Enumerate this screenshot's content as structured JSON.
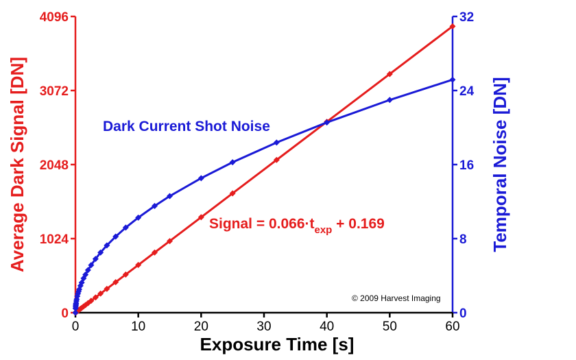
{
  "chart_data": {
    "type": "line",
    "xlabel": "Exposure Time [s]",
    "ylabel_left": "Average Dark Signal [DN]",
    "ylabel_right": "Temporal Noise [DN]",
    "xlim": [
      0,
      60
    ],
    "ylim_left": [
      0,
      4096
    ],
    "ylim_right": [
      0,
      32
    ],
    "x_ticks": [
      "0",
      "10",
      "20",
      "30",
      "40",
      "50",
      "60"
    ],
    "y_left_ticks": [
      "0",
      "1024",
      "2048",
      "3072",
      "4096"
    ],
    "y_right_ticks": [
      "0",
      "8",
      "16",
      "24",
      "32"
    ],
    "grid": false,
    "series": [
      {
        "name": "Average Dark Signal",
        "axis": "left",
        "color": "#e51d1d",
        "x": [
          0,
          0.02,
          0.04,
          0.06,
          0.08,
          0.1,
          0.15,
          0.2,
          0.3,
          0.4,
          0.5,
          0.6,
          0.8,
          1,
          1.3,
          1.6,
          2,
          2.5,
          3.2,
          4,
          5,
          6.4,
          8,
          10,
          12.6,
          15,
          20,
          25,
          32,
          40,
          50,
          60
        ],
        "y": [
          0,
          2,
          3,
          4,
          5,
          7,
          10,
          13,
          20,
          27,
          33,
          40,
          53,
          66,
          86,
          106,
          132,
          165,
          211,
          264,
          330,
          422,
          528,
          660,
          832,
          990,
          1320,
          1650,
          2112,
          2640,
          3300,
          3960
        ]
      },
      {
        "name": "Dark Current Shot Noise",
        "axis": "right",
        "color": "#1a1ad6",
        "x": [
          0,
          0.02,
          0.04,
          0.06,
          0.08,
          0.1,
          0.15,
          0.2,
          0.3,
          0.4,
          0.5,
          0.6,
          0.8,
          1,
          1.3,
          1.6,
          2,
          2.5,
          3.2,
          4,
          5,
          6.4,
          8,
          10,
          12.6,
          15,
          20,
          25,
          32,
          40,
          50,
          60
        ],
        "y": [
          0,
          0.46,
          0.65,
          0.8,
          0.92,
          1.03,
          1.26,
          1.45,
          1.78,
          2.06,
          2.3,
          2.52,
          2.91,
          3.25,
          3.71,
          4.11,
          4.6,
          5.14,
          5.81,
          6.5,
          7.27,
          8.22,
          9.19,
          10.27,
          11.53,
          12.59,
          14.53,
          16.25,
          18.38,
          20.55,
          22.98,
          25.17
        ]
      }
    ],
    "annotations": {
      "noise_label": "Dark Current Shot Noise",
      "fit_prefix": "Signal = 0.066·t",
      "fit_subscript": "exp",
      "fit_suffix": " + 0.169",
      "copyright": "© 2009 Harvest Imaging"
    }
  }
}
